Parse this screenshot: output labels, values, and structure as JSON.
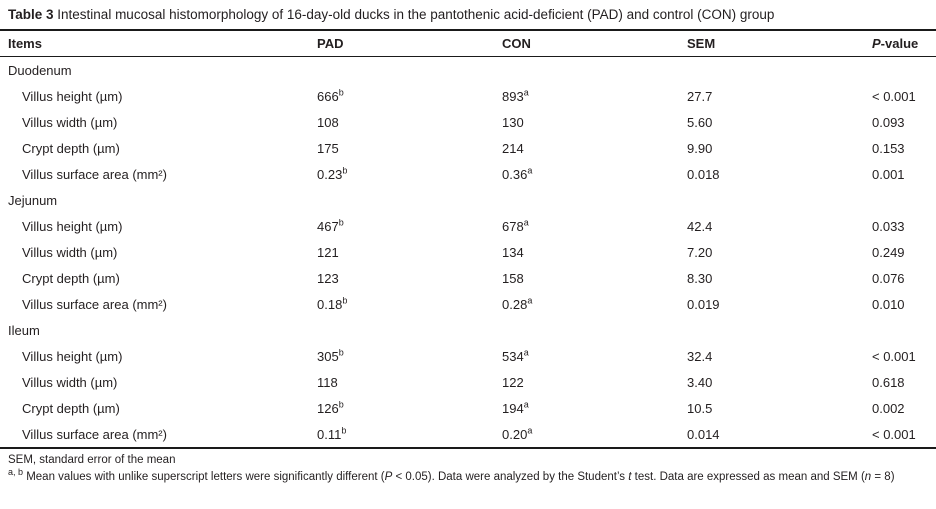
{
  "caption": {
    "label": "Table 3",
    "text": " Intestinal mucosal histomorphology of 16-day-old ducks in the pantothenic acid-deficient (PAD) and control (CON) group"
  },
  "table": {
    "columns": [
      {
        "text": "Items"
      },
      {
        "text": "PAD"
      },
      {
        "text": "CON"
      },
      {
        "text": "SEM"
      },
      {
        "italic": "P",
        "text": "-value"
      }
    ],
    "sections": [
      {
        "header": "Duodenum",
        "rows": [
          {
            "item": "Villus height (µm)",
            "cells": [
              {
                "v": "666",
                "sup": "b"
              },
              {
                "v": "893",
                "sup": "a"
              },
              {
                "v": "27.7"
              },
              {
                "v": "< 0.001"
              }
            ]
          },
          {
            "item": "Villus width (µm)",
            "cells": [
              {
                "v": "108"
              },
              {
                "v": "130"
              },
              {
                "v": "5.60"
              },
              {
                "v": "0.093"
              }
            ]
          },
          {
            "item": "Crypt depth (µm)",
            "cells": [
              {
                "v": "175"
              },
              {
                "v": "214"
              },
              {
                "v": "9.90"
              },
              {
                "v": "0.153"
              }
            ]
          },
          {
            "item": "Villus surface area (mm²)",
            "cells": [
              {
                "v": "0.23",
                "sup": "b"
              },
              {
                "v": "0.36",
                "sup": "a"
              },
              {
                "v": "0.018"
              },
              {
                "v": "0.001"
              }
            ]
          }
        ]
      },
      {
        "header": "Jejunum",
        "rows": [
          {
            "item": "Villus height (µm)",
            "cells": [
              {
                "v": "467",
                "sup": "b"
              },
              {
                "v": "678",
                "sup": "a"
              },
              {
                "v": "42.4"
              },
              {
                "v": "0.033"
              }
            ]
          },
          {
            "item": "Villus width (µm)",
            "cells": [
              {
                "v": "121"
              },
              {
                "v": "134"
              },
              {
                "v": "7.20"
              },
              {
                "v": "0.249"
              }
            ]
          },
          {
            "item": "Crypt depth (µm)",
            "cells": [
              {
                "v": "123"
              },
              {
                "v": "158"
              },
              {
                "v": "8.30"
              },
              {
                "v": "0.076"
              }
            ]
          },
          {
            "item": "Villus surface area (mm²)",
            "cells": [
              {
                "v": "0.18",
                "sup": "b"
              },
              {
                "v": "0.28",
                "sup": "a"
              },
              {
                "v": "0.019"
              },
              {
                "v": "0.010"
              }
            ]
          }
        ]
      },
      {
        "header": "Ileum",
        "rows": [
          {
            "item": "Villus height (µm)",
            "cells": [
              {
                "v": "305",
                "sup": "b"
              },
              {
                "v": "534",
                "sup": "a"
              },
              {
                "v": "32.4"
              },
              {
                "v": "< 0.001"
              }
            ]
          },
          {
            "item": "Villus width (µm)",
            "cells": [
              {
                "v": "118"
              },
              {
                "v": "122"
              },
              {
                "v": "3.40"
              },
              {
                "v": "0.618"
              }
            ]
          },
          {
            "item": "Crypt depth (µm)",
            "cells": [
              {
                "v": "126",
                "sup": "b"
              },
              {
                "v": "194",
                "sup": "a"
              },
              {
                "v": "10.5"
              },
              {
                "v": "0.002"
              }
            ]
          },
          {
            "item": "Villus surface area (mm²)",
            "cells": [
              {
                "v": "0.11",
                "sup": "b"
              },
              {
                "v": "0.20",
                "sup": "a"
              },
              {
                "v": "0.014"
              },
              {
                "v": "< 0.001"
              }
            ]
          }
        ]
      }
    ]
  },
  "footnotes": {
    "line1": "SEM, standard error of the mean",
    "line2": [
      {
        "t": "a, b",
        "s": "sup"
      },
      {
        "t": " Mean values with unlike superscript letters were significantly different (",
        "s": "n"
      },
      {
        "t": "P",
        "s": "i"
      },
      {
        "t": " < 0.05). Data were analyzed by the Student’s ",
        "s": "n"
      },
      {
        "t": "t",
        "s": "i"
      },
      {
        "t": " test. Data are expressed as mean and SEM (",
        "s": "n"
      },
      {
        "t": "n",
        "s": "i"
      },
      {
        "t": " = 8)",
        "s": "n"
      }
    ]
  }
}
